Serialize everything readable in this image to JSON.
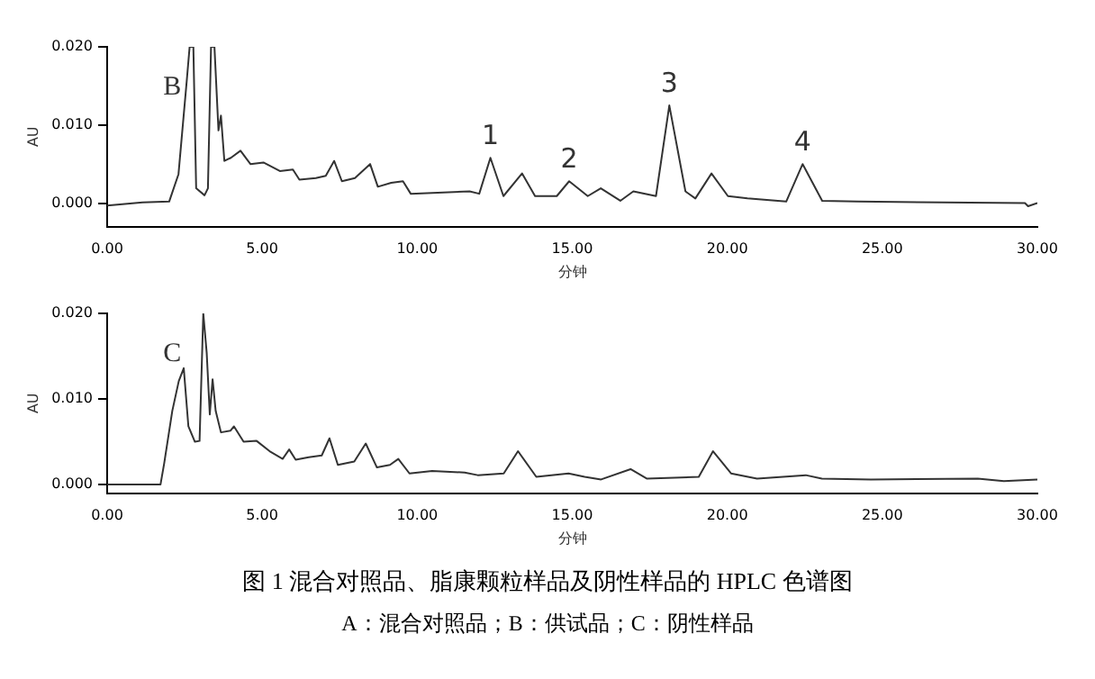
{
  "chart_data": [
    {
      "type": "line",
      "xlabel": "分钟",
      "ylabel": "AU",
      "xlim": [
        0,
        30
      ],
      "ylim": [
        -0.003,
        0.02
      ],
      "xticks": [
        {
          "value": 0,
          "label": "0.00"
        },
        {
          "value": 5,
          "label": "5.00"
        },
        {
          "value": 10,
          "label": "10.00"
        },
        {
          "value": 15,
          "label": "15.00"
        },
        {
          "value": 20,
          "label": "20.00"
        },
        {
          "value": 25,
          "label": "25.00"
        },
        {
          "value": 30,
          "label": "30.00"
        }
      ],
      "yticks": [
        {
          "value": 0,
          "label": "0.000"
        },
        {
          "value": 0.01,
          "label": "0.010"
        },
        {
          "value": 0.02,
          "label": "0.020"
        }
      ],
      "grid": false,
      "legend": false,
      "marker": "none",
      "line_style": "solid",
      "series": [
        {
          "color": "#333333",
          "x": [
            0,
            1.14,
            2.0,
            2.3,
            2.57,
            2.66,
            2.78,
            2.87,
            3.14,
            3.25,
            3.35,
            3.46,
            3.59,
            3.67,
            3.78,
            3.99,
            4.3,
            4.62,
            5.04,
            5.57,
            5.99,
            6.2,
            6.73,
            7.05,
            7.32,
            7.57,
            7.99,
            8.48,
            8.73,
            9.16,
            9.54,
            9.79,
            11.69,
            12.0,
            12.36,
            12.78,
            13.38,
            13.8,
            14.5,
            14.9,
            15.5,
            15.92,
            16.55,
            16.97,
            17.7,
            18.13,
            18.65,
            18.97,
            19.49,
            20.02,
            20.65,
            21.9,
            22.43,
            23.06,
            24.2,
            29.6,
            29.7,
            30.0
          ],
          "values": [
            -0.0003,
            0.0001,
            0.0002,
            0.0037,
            0.0158,
            0.02,
            0.02,
            0.0019,
            0.001,
            0.0019,
            0.02,
            0.02,
            0.0093,
            0.0112,
            0.0054,
            0.0058,
            0.0067,
            0.005,
            0.0052,
            0.0041,
            0.0043,
            0.003,
            0.0032,
            0.0035,
            0.0054,
            0.0028,
            0.0032,
            0.005,
            0.0021,
            0.0026,
            0.0028,
            0.0012,
            0.0015,
            0.0012,
            0.0058,
            0.0009,
            0.0038,
            0.0009,
            0.0009,
            0.0028,
            0.0009,
            0.0019,
            0.0003,
            0.0015,
            0.0009,
            0.0125,
            0.0015,
            0.0006,
            0.0038,
            0.0009,
            0.0006,
            0.0002,
            0.005,
            0.0003,
            0.0002,
            0,
            -0.0004,
            0
          ]
        }
      ],
      "annotations": [
        "B",
        {
          "text": "1",
          "x": 12.36,
          "y": 0.0058
        },
        {
          "text": "2",
          "x": 14.9,
          "y": 0.0028
        },
        {
          "text": "3",
          "x": 18.13,
          "y": 0.0125
        },
        {
          "text": "4",
          "x": 22.43,
          "y": 0.005
        }
      ]
    },
    {
      "type": "line",
      "title": "图 1  混合对照品、脂康颗粒样品及阴性样品的 HPLC 色谱图",
      "xlabel": "分钟",
      "ylabel": "AU",
      "xlim": [
        0,
        30
      ],
      "ylim": [
        -0.001,
        0.02
      ],
      "xticks": [
        {
          "value": 0,
          "label": "0.00"
        },
        {
          "value": 5,
          "label": "5.00"
        },
        {
          "value": 10,
          "label": "10.00"
        },
        {
          "value": 15,
          "label": "15.00"
        },
        {
          "value": 20,
          "label": "20.00"
        },
        {
          "value": 25,
          "label": "25.00"
        },
        {
          "value": 30,
          "label": "30.00"
        }
      ],
      "yticks": [
        {
          "value": 0,
          "label": "0.000"
        },
        {
          "value": 0.01,
          "label": "0.010"
        },
        {
          "value": 0.02,
          "label": "0.020"
        }
      ],
      "grid": false,
      "legend": false,
      "marker": "none",
      "line_style": "solid",
      "series": [
        {
          "color": "#333333",
          "x": [
            0,
            1.72,
            1.84,
            2.1,
            2.31,
            2.47,
            2.62,
            2.83,
            2.98,
            3.1,
            3.21,
            3.31,
            3.4,
            3.5,
            3.67,
            3.98,
            4.09,
            4.4,
            4.82,
            5.24,
            5.66,
            5.87,
            6.08,
            6.5,
            6.92,
            7.17,
            7.44,
            7.97,
            8.34,
            8.7,
            9.12,
            9.39,
            9.75,
            10.48,
            11.53,
            11.95,
            12.79,
            13.25,
            13.84,
            14.88,
            15.4,
            15.93,
            16.88,
            17.4,
            19.08,
            19.54,
            20.12,
            20.96,
            22.53,
            23.05,
            24.63,
            28.08,
            28.92,
            30.0
          ],
          "values": [
            0,
            0,
            0.0025,
            0.0086,
            0.0121,
            0.0136,
            0.0068,
            0.005,
            0.0051,
            0.02,
            0.0154,
            0.0082,
            0.0123,
            0.0086,
            0.0061,
            0.0063,
            0.0068,
            0.005,
            0.0051,
            0.0039,
            0.003,
            0.0041,
            0.0029,
            0.0032,
            0.0034,
            0.0054,
            0.0023,
            0.0027,
            0.0048,
            0.002,
            0.0023,
            0.003,
            0.0013,
            0.0016,
            0.0014,
            0.0011,
            0.0013,
            0.0039,
            0.0009,
            0.0013,
            0.0009,
            0.0006,
            0.0018,
            0.0007,
            0.0009,
            0.0039,
            0.0013,
            0.0007,
            0.0011,
            0.0007,
            0.0006,
            0.0007,
            0.0004,
            0.0006
          ]
        }
      ],
      "annotations": [
        "C",
        "A：混合对照品；B：供试品；C：阴性样品"
      ]
    }
  ]
}
